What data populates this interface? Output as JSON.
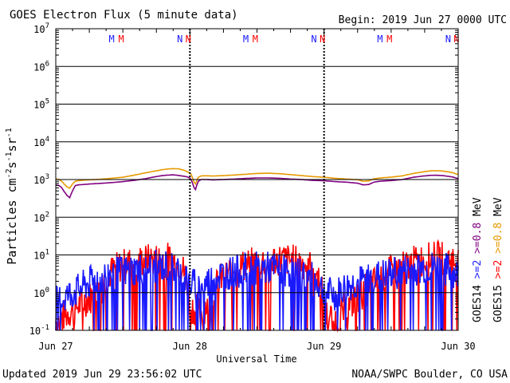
{
  "chart_data": {
    "type": "line",
    "title": "GOES Electron Flux (5 minute data)",
    "begin": "Begin: 2019 Jun 27 0000 UTC",
    "xlabel": "Universal Time",
    "ylabel": "Particles cm⁻²s⁻¹sr⁻¹",
    "ylabel_main": "Particles cm",
    "yscale": "log",
    "ylim": [
      0.1,
      10000000
    ],
    "xlim": [
      0,
      72
    ],
    "x_unit": "hours since 2019 Jun 27 0000 UTC",
    "x_tick_labels": [
      "Jun 27",
      "Jun 28",
      "Jun 29",
      "Jun 30"
    ],
    "x_tick_hours": [
      0,
      24,
      48,
      72
    ],
    "y_tick_labels": [
      {
        "base": "10",
        "exp": "7",
        "value": 10000000
      },
      {
        "base": "10",
        "exp": "6",
        "value": 1000000
      },
      {
        "base": "10",
        "exp": "5",
        "value": 100000
      },
      {
        "base": "10",
        "exp": "4",
        "value": 10000
      },
      {
        "base": "10",
        "exp": "3",
        "value": 1000
      },
      {
        "base": "10",
        "exp": "2",
        "value": 100
      },
      {
        "base": "10",
        "exp": "1",
        "value": 10
      },
      {
        "base": "10",
        "exp": "0",
        "value": 1
      },
      {
        "base": "10",
        "exp": "-1",
        "value": 0.1
      }
    ],
    "threshold": 1000,
    "markers": [
      {
        "label": "M",
        "hour": 10.0,
        "color": "#1a1aff"
      },
      {
        "label": "M",
        "hour": 11.7,
        "color": "#ff0000"
      },
      {
        "label": "N",
        "hour": 22.2,
        "color": "#1a1aff"
      },
      {
        "label": "N",
        "hour": 23.7,
        "color": "#ff0000"
      },
      {
        "label": "M",
        "hour": 34.0,
        "color": "#1a1aff"
      },
      {
        "label": "M",
        "hour": 35.7,
        "color": "#ff0000"
      },
      {
        "label": "N",
        "hour": 46.2,
        "color": "#1a1aff"
      },
      {
        "label": "N",
        "hour": 47.7,
        "color": "#ff0000"
      },
      {
        "label": "M",
        "hour": 58.0,
        "color": "#1a1aff"
      },
      {
        "label": "M",
        "hour": 59.7,
        "color": "#ff0000"
      },
      {
        "label": "N",
        "hour": 70.2,
        "color": "#1a1aff"
      },
      {
        "label": "N",
        "hour": 71.7,
        "color": "#ff0000"
      }
    ],
    "series": [
      {
        "name": ">=0.8 MeV",
        "satellite": "GOES14",
        "color": "#800080",
        "x": [
          0,
          0.5,
          1,
          1.5,
          2,
          2.5,
          3,
          3.5,
          4,
          5,
          6,
          8,
          10,
          12,
          14,
          16,
          18,
          19,
          20,
          21,
          22,
          23,
          23.5,
          24,
          24.3,
          24.7,
          25,
          25.5,
          26,
          27,
          28,
          30,
          32,
          34,
          36,
          38,
          40,
          42,
          44,
          46,
          48,
          50,
          52,
          54,
          55,
          56,
          57,
          58,
          60,
          62,
          64,
          66,
          67,
          68,
          69,
          70,
          71,
          72
        ],
        "y": [
          720,
          700,
          620,
          480,
          380,
          330,
          500,
          690,
          720,
          740,
          760,
          790,
          830,
          880,
          950,
          1050,
          1200,
          1270,
          1310,
          1330,
          1280,
          1220,
          1180,
          1090,
          950,
          620,
          540,
          900,
          1000,
          1000,
          980,
          1000,
          1030,
          1070,
          1100,
          1100,
          1080,
          1030,
          1000,
          950,
          930,
          880,
          850,
          800,
          720,
          740,
          860,
          900,
          940,
          1000,
          1150,
          1250,
          1290,
          1300,
          1280,
          1230,
          1170,
          1050
        ]
      },
      {
        "name": ">=0.8 MeV",
        "satellite": "GOES15",
        "color": "#e69900",
        "x": [
          0,
          0.5,
          1,
          1.5,
          2,
          2.5,
          3,
          3.5,
          4,
          5,
          6,
          8,
          10,
          12,
          14,
          16,
          18,
          19,
          20,
          21,
          22,
          23,
          23.5,
          24,
          24.3,
          24.7,
          25,
          25.5,
          26,
          27,
          28,
          30,
          32,
          34,
          36,
          38,
          40,
          42,
          44,
          46,
          48,
          50,
          52,
          54,
          55,
          56,
          57,
          58,
          60,
          62,
          64,
          66,
          67,
          68,
          69,
          70,
          71,
          72
        ],
        "y": [
          1030,
          1010,
          920,
          760,
          640,
          590,
          760,
          900,
          930,
          960,
          980,
          1020,
          1080,
          1150,
          1300,
          1500,
          1700,
          1820,
          1900,
          1950,
          1920,
          1750,
          1620,
          1480,
          1300,
          860,
          760,
          1150,
          1250,
          1260,
          1240,
          1270,
          1320,
          1380,
          1450,
          1470,
          1430,
          1350,
          1270,
          1200,
          1150,
          1080,
          1030,
          990,
          900,
          920,
          1050,
          1100,
          1160,
          1250,
          1450,
          1620,
          1700,
          1720,
          1690,
          1620,
          1520,
          1350
        ]
      },
      {
        "name": ">=2 MeV",
        "satellite": "GOES14",
        "color": "#1a1aff",
        "x": [
          0,
          2,
          4,
          6,
          8,
          10,
          12,
          14,
          16,
          18,
          20,
          22,
          24,
          26,
          28,
          30,
          32,
          34,
          36,
          38,
          40,
          42,
          44,
          46,
          48,
          50,
          52,
          54,
          56,
          58,
          60,
          62,
          64,
          66,
          68,
          70,
          72
        ],
        "y": [
          0.6,
          0.9,
          1.3,
          2.0,
          2.8,
          3.5,
          4.0,
          4.5,
          5.0,
          5.5,
          5.5,
          4.5,
          2.0,
          1.5,
          2.5,
          3.5,
          4.0,
          4.5,
          5.0,
          5.0,
          4.5,
          4.0,
          3.5,
          2.5,
          1.2,
          0.9,
          1.5,
          2.0,
          2.5,
          3.0,
          3.5,
          4.0,
          4.5,
          5.0,
          5.0,
          4.5,
          3.0
        ]
      },
      {
        "name": ">=2 MeV",
        "satellite": "GOES15",
        "color": "#ff0000",
        "x": [
          0,
          2,
          4,
          6,
          8,
          10,
          12,
          14,
          16,
          18,
          20,
          22,
          24,
          26,
          28,
          30,
          32,
          34,
          36,
          38,
          40,
          42,
          44,
          46,
          48,
          50,
          52,
          54,
          56,
          58,
          60,
          62,
          64,
          66,
          68,
          70,
          72
        ],
        "y": [
          0.2,
          0.3,
          0.5,
          0.8,
          1.2,
          4.0,
          6.0,
          7.0,
          8.0,
          8.5,
          9.0,
          7.0,
          0.5,
          0.3,
          0.8,
          3.0,
          5.0,
          6.0,
          7.0,
          8.0,
          8.5,
          8.0,
          7.0,
          5.0,
          0.3,
          0.2,
          0.4,
          0.8,
          1.5,
          2.5,
          4.0,
          5.0,
          7.0,
          8.5,
          9.5,
          9.0,
          7.0
        ]
      }
    ],
    "legend": [
      {
        "sat": "GOES14",
        "low": ">=0.8",
        "high": ">=2",
        "low_color": "#800080",
        "high_color": "#1a1aff"
      },
      {
        "sat": "GOES15",
        "low": ">=0.8",
        "high": ">=2",
        "low_color": "#e69900",
        "high_color": "#ff0000"
      }
    ],
    "legend_unit": "MeV",
    "updated": "Updated 2019 Jun 29 23:56:02 UTC",
    "source": "NOAA/SWPC Boulder, CO USA"
  }
}
